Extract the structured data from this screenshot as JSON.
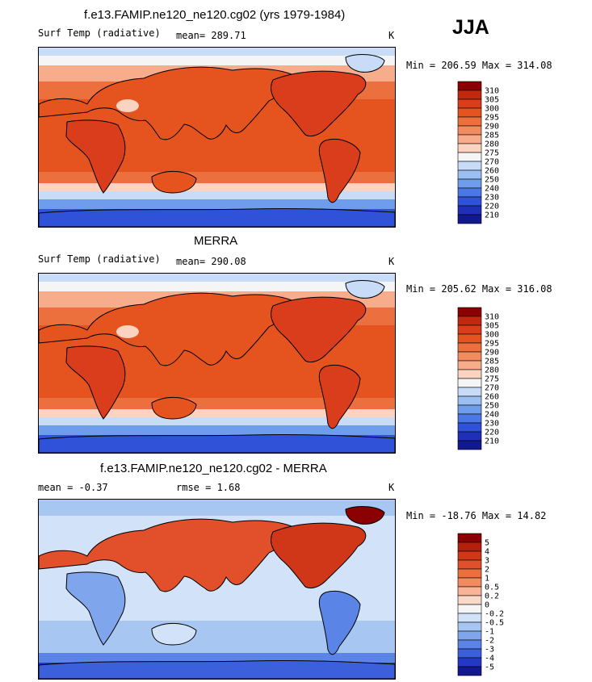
{
  "season": "JJA",
  "panels": [
    {
      "id": "model",
      "title": "f.e13.FAMIP.ne120_ne120.cg02 (yrs 1979-1984)",
      "left_label": "Surf Temp (radiative)",
      "center_label": "mean= 289.71",
      "units": "K",
      "minmax": "Min = 206.59 Max = 314.08",
      "kind": "abs"
    },
    {
      "id": "obs",
      "title": "MERRA",
      "left_label": "Surf Temp (radiative)",
      "center_label": "mean= 290.08",
      "units": "K",
      "minmax": "Min = 205.62 Max = 316.08",
      "kind": "abs"
    },
    {
      "id": "diff",
      "title": "f.e13.FAMIP.ne120_ne120.cg02 - MERRA",
      "left_label": "mean =  -0.37",
      "center_label": "rmse =   1.68",
      "units": "K",
      "minmax": "Min = -18.76 Max =  14.82",
      "kind": "diff"
    }
  ],
  "colorbars": {
    "abs": {
      "levels": [
        "310",
        "305",
        "300",
        "295",
        "290",
        "285",
        "280",
        "275",
        "270",
        "260",
        "250",
        "240",
        "230",
        "220",
        "210"
      ],
      "colors": [
        "#8b0000",
        "#c0280f",
        "#d93d1c",
        "#e5531f",
        "#ec6f3e",
        "#f28b5f",
        "#f7ad8c",
        "#fbd3c0",
        "#f5f5f5",
        "#c8dcf7",
        "#9cbff2",
        "#6f9ded",
        "#4a78e6",
        "#2f52d8",
        "#1f2fb8",
        "#12188f"
      ]
    },
    "diff": {
      "levels": [
        "5",
        "4",
        "3",
        "2",
        "1",
        "0.5",
        "0.2",
        "0",
        "-0.2",
        "-0.5",
        "-1",
        "-2",
        "-3",
        "-4",
        "-5"
      ],
      "colors": [
        "#8b0000",
        "#b3200e",
        "#cf3718",
        "#e1502a",
        "#ec6f3e",
        "#f28b5f",
        "#f8b399",
        "#fbd9c9",
        "#f5f5f5",
        "#d2e2f8",
        "#a8c6f2",
        "#7fa6ec",
        "#5a84e6",
        "#3c5fdb",
        "#2538c4",
        "#12188f"
      ]
    }
  },
  "chart_data": [
    {
      "type": "heatmap",
      "title": "f.e13.FAMIP.ne120_ne120.cg02 (yrs 1979-1984)",
      "variable": "Surf Temp (radiative)",
      "units": "K",
      "mean": 289.71,
      "min": 206.59,
      "max": 314.08,
      "contour_levels": [
        210,
        220,
        230,
        240,
        250,
        260,
        270,
        275,
        280,
        285,
        290,
        295,
        300,
        305,
        310
      ]
    },
    {
      "type": "heatmap",
      "title": "MERRA",
      "variable": "Surf Temp (radiative)",
      "units": "K",
      "mean": 290.08,
      "min": 205.62,
      "max": 316.08,
      "contour_levels": [
        210,
        220,
        230,
        240,
        250,
        260,
        270,
        275,
        280,
        285,
        290,
        295,
        300,
        305,
        310
      ]
    },
    {
      "type": "heatmap",
      "title": "f.e13.FAMIP.ne120_ne120.cg02 - MERRA",
      "units": "K",
      "mean": -0.37,
      "rmse": 1.68,
      "min": -18.76,
      "max": 14.82,
      "contour_levels": [
        -5,
        -4,
        -3,
        -2,
        -1,
        -0.5,
        -0.2,
        0,
        0.2,
        0.5,
        1,
        2,
        3,
        4,
        5
      ]
    }
  ]
}
